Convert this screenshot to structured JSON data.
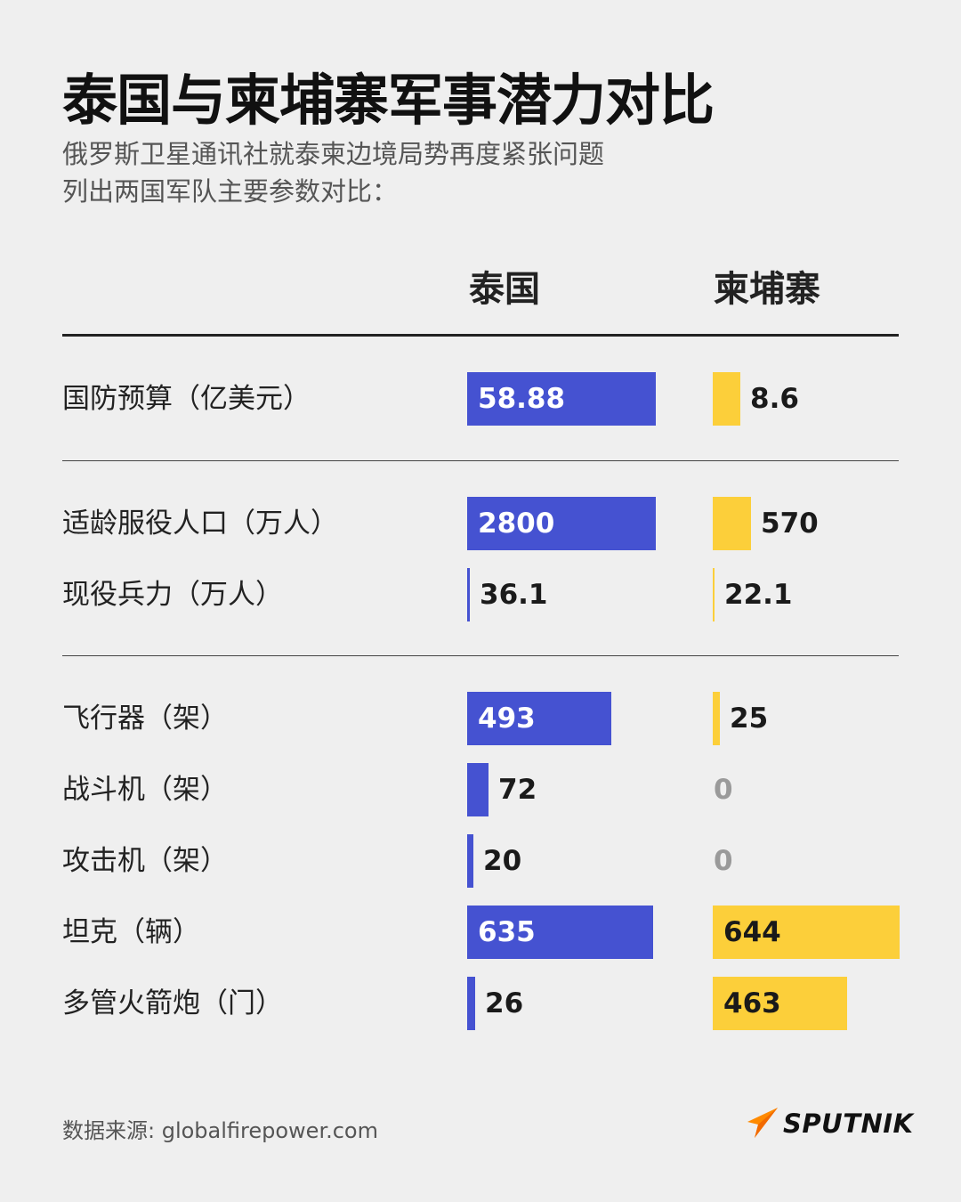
{
  "header": {
    "title": "泰国与柬埔寨军事潜力对比",
    "subtitle_line1": "俄罗斯卫星通讯社就泰柬边境局势再度紧张问题",
    "subtitle_line2": "列出两国军队主要参数对比："
  },
  "colors": {
    "thailand": "#4552d1",
    "cambodia": "#fccf3a",
    "background": "#efefef"
  },
  "chart_data": {
    "type": "bar",
    "series": [
      {
        "name": "泰国",
        "values": [
          58.88,
          2800,
          36.1,
          493,
          72,
          20,
          635,
          26
        ],
        "labels": [
          "58.88",
          "2800",
          "36.1",
          "493",
          "72",
          "20",
          "635",
          "26"
        ]
      },
      {
        "name": "柬埔寨",
        "values": [
          8.6,
          570,
          22.1,
          25,
          0,
          0,
          644,
          463
        ],
        "labels": [
          "8.6",
          "570",
          "22.1",
          "25",
          "0",
          "0",
          "644",
          "463"
        ]
      }
    ],
    "categories": [
      "国防预算（亿美元）",
      "适龄服役人口（万人）",
      "现役兵力（万人）",
      "飞行器（架）",
      "战斗机（架）",
      "攻击机（架）",
      "坦克（辆）",
      "多管火箭炮（门）"
    ],
    "groups": [
      [
        0
      ],
      [
        1,
        2
      ],
      [
        3,
        4,
        5,
        6,
        7
      ]
    ],
    "title": "泰国与柬埔寨军事潜力对比",
    "legend": "column headers"
  },
  "footer": {
    "source": "数据来源: globalfirepower.com",
    "logo_text": "SPUTNIK",
    "logo_icon": "sputnik-logo-icon"
  }
}
